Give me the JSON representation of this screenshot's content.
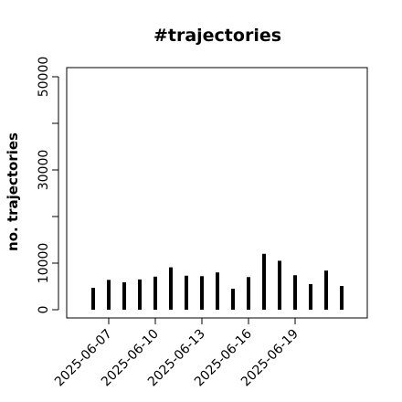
{
  "chart_data": {
    "type": "bar",
    "title": "#trajectories",
    "ylabel": "no. trajectories",
    "xlabel": "",
    "ylim": [
      0,
      50000
    ],
    "yticks": [
      0,
      10000,
      30000,
      50000
    ],
    "ytick_labels": [
      "0",
      "10000",
      "30000",
      "50000"
    ],
    "xtick_labels": [
      "2025-06-07",
      "2025-06-10",
      "2025-06-13",
      "2025-06-16",
      "2025-06-19"
    ],
    "categories": [
      "2025-06-06",
      "2025-06-07",
      "2025-06-08",
      "2025-06-09",
      "2025-06-10",
      "2025-06-11",
      "2025-06-12",
      "2025-06-13",
      "2025-06-14",
      "2025-06-15",
      "2025-06-16",
      "2025-06-17",
      "2025-06-18",
      "2025-06-19",
      "2025-06-20",
      "2025-06-21",
      "2025-06-22"
    ],
    "values": [
      4700,
      6400,
      5900,
      6500,
      7100,
      9100,
      7300,
      7200,
      8000,
      4500,
      7000,
      12000,
      10500,
      7400,
      5500,
      8400,
      5100
    ]
  }
}
